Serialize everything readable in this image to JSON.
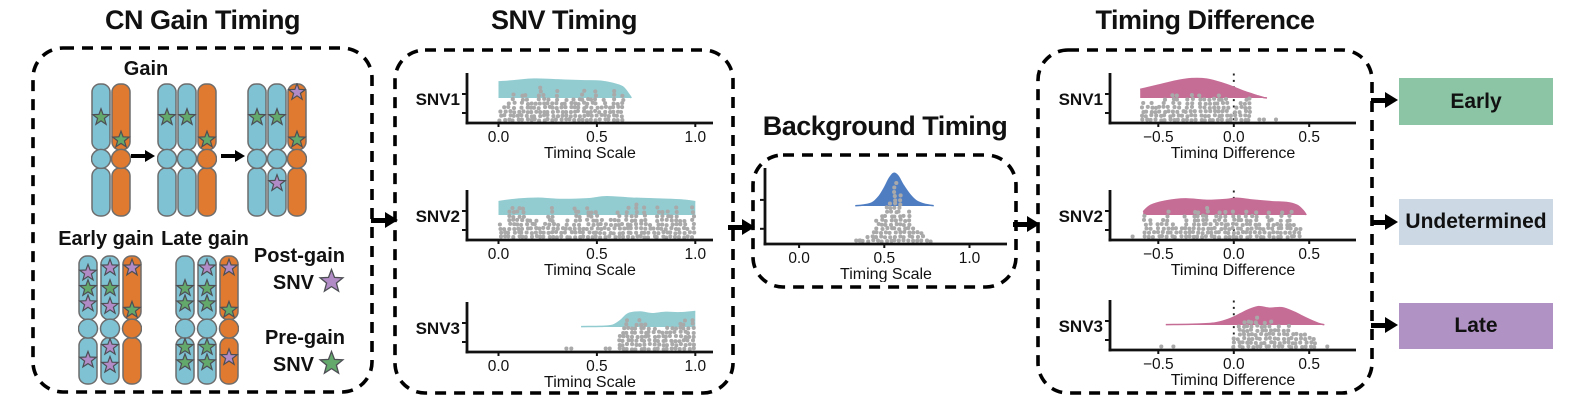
{
  "colors": {
    "chrom_blue": "#7fc2d4",
    "chrom_orange": "#df7a30",
    "chrom_stroke": "#6d6d6d",
    "green": "#64a96c",
    "purple": "#b18bc5",
    "star_stroke": "#4d4f55",
    "teal": "#92ccd1",
    "blue": "#4f7dc2",
    "pink": "#c66d96",
    "dot": "#a9a9a9",
    "axis": "#111111"
  },
  "cn_gain": {
    "title": "CN Gain Timing",
    "gain_label": "Gain",
    "early_label": "Early gain",
    "late_label": "Late gain",
    "gain_stages": [
      {
        "chroms": [
          {
            "color": "chrom_blue",
            "stars": [
              [
                "green",
                0.26
              ]
            ]
          },
          {
            "color": "chrom_orange",
            "stars": [
              [
                "green",
                0.43
              ]
            ]
          }
        ]
      },
      {
        "chroms": [
          {
            "color": "chrom_blue",
            "stars": [
              [
                "green",
                0.26
              ]
            ]
          },
          {
            "color": "chrom_blue",
            "stars": [
              [
                "green",
                0.26
              ]
            ]
          },
          {
            "color": "chrom_orange",
            "stars": [
              [
                "green",
                0.43
              ]
            ]
          }
        ]
      },
      {
        "chroms": [
          {
            "color": "chrom_blue",
            "stars": [
              [
                "green",
                0.26
              ]
            ]
          },
          {
            "color": "chrom_blue",
            "stars": [
              [
                "green",
                0.26
              ],
              [
                "purple",
                0.76
              ]
            ]
          },
          {
            "color": "chrom_orange",
            "stars": [
              [
                "purple",
                0.07
              ],
              [
                "green",
                0.43
              ]
            ]
          }
        ]
      }
    ],
    "early_group": {
      "chroms": [
        {
          "color": "chrom_blue",
          "stars": [
            [
              "purple",
              0.14
            ],
            [
              "green",
              0.26
            ],
            [
              "purple",
              0.38
            ],
            [
              "purple",
              0.82
            ]
          ]
        },
        {
          "color": "chrom_blue",
          "stars": [
            [
              "purple",
              0.1
            ],
            [
              "green",
              0.26
            ],
            [
              "purple",
              0.4
            ],
            [
              "purple",
              0.72
            ],
            [
              "purple",
              0.86
            ]
          ]
        },
        {
          "color": "chrom_orange",
          "stars": [
            [
              "purple",
              0.1
            ],
            [
              "green",
              0.43
            ]
          ]
        }
      ]
    },
    "late_group": {
      "chroms": [
        {
          "color": "chrom_blue",
          "stars": [
            [
              "green",
              0.26
            ],
            [
              "green",
              0.38
            ],
            [
              "green",
              0.72
            ],
            [
              "green",
              0.84
            ]
          ]
        },
        {
          "color": "chrom_blue",
          "stars": [
            [
              "purple",
              0.1
            ],
            [
              "green",
              0.26
            ],
            [
              "green",
              0.38
            ],
            [
              "green",
              0.72
            ],
            [
              "green",
              0.84
            ]
          ]
        },
        {
          "color": "chrom_orange",
          "stars": [
            [
              "purple",
              0.1
            ],
            [
              "green",
              0.43
            ],
            [
              "purple",
              0.8
            ]
          ]
        }
      ]
    },
    "legend": [
      {
        "line1": "Post-gain",
        "line2": "SNV",
        "star": "purple"
      },
      {
        "line1": "Pre-gain",
        "line2": "SNV",
        "star": "green"
      }
    ]
  },
  "snv_timing": {
    "title": "SNV Timing",
    "plots": [
      {
        "label": "SNV1",
        "axis_label": "Timing Scale",
        "domain": [
          -0.16,
          1.09
        ],
        "ticks": [
          {
            "v": 0,
            "label": "0.0"
          },
          {
            "v": 0.5,
            "label": "0.5"
          },
          {
            "v": 1,
            "label": "1.0"
          }
        ],
        "density_color": "teal",
        "zero_line": false,
        "density": [
          [
            0.0,
            0.75
          ],
          [
            0.08,
            0.8
          ],
          [
            0.18,
            0.88
          ],
          [
            0.3,
            0.84
          ],
          [
            0.42,
            0.8
          ],
          [
            0.52,
            0.78
          ],
          [
            0.58,
            0.68
          ],
          [
            0.63,
            0.52
          ],
          [
            0.66,
            0.2
          ],
          [
            0.675,
            0.0
          ]
        ],
        "dots": {
          "min": 0.0,
          "max": 0.64,
          "max_stack": 9,
          "weight": "flat",
          "seed": 7
        },
        "outliers": []
      },
      {
        "label": "SNV2",
        "axis_label": "Timing Scale",
        "domain": [
          -0.16,
          1.09
        ],
        "ticks": [
          {
            "v": 0,
            "label": "0.0"
          },
          {
            "v": 0.5,
            "label": "0.5"
          },
          {
            "v": 1,
            "label": "1.0"
          }
        ],
        "density_color": "teal",
        "zero_line": false,
        "density": [
          [
            0.0,
            0.62
          ],
          [
            0.1,
            0.74
          ],
          [
            0.2,
            0.78
          ],
          [
            0.32,
            0.72
          ],
          [
            0.45,
            0.75
          ],
          [
            0.55,
            0.85
          ],
          [
            0.68,
            0.78
          ],
          [
            0.82,
            0.74
          ],
          [
            0.93,
            0.7
          ],
          [
            1.0,
            0.62
          ]
        ],
        "dots": {
          "min": 0.0,
          "max": 1.0,
          "max_stack": 9,
          "weight": "flat",
          "seed": 8
        },
        "outliers": []
      },
      {
        "label": "SNV3",
        "axis_label": "Timing Scale",
        "domain": [
          -0.16,
          1.09
        ],
        "ticks": [
          {
            "v": 0,
            "label": "0.0"
          },
          {
            "v": 0.5,
            "label": "0.5"
          },
          {
            "v": 1,
            "label": "1.0"
          }
        ],
        "density_color": "teal",
        "zero_line": false,
        "density": [
          [
            0.42,
            0.02
          ],
          [
            0.52,
            0.03
          ],
          [
            0.58,
            0.08
          ],
          [
            0.62,
            0.3
          ],
          [
            0.66,
            0.62
          ],
          [
            0.72,
            0.7
          ],
          [
            0.78,
            0.62
          ],
          [
            0.85,
            0.68
          ],
          [
            0.92,
            0.66
          ],
          [
            1.0,
            0.72
          ]
        ],
        "dots": {
          "min": 0.6,
          "max": 1.0,
          "max_stack": 9,
          "weight": "density",
          "pow": 0.4,
          "seed": 9
        },
        "outliers": [
          0.345,
          0.37,
          0.545,
          0.565
        ]
      }
    ]
  },
  "background_timing": {
    "title": "Background Timing",
    "plot": {
      "label": "",
      "axis_label": "Timing Scale",
      "domain": [
        -0.2,
        1.22
      ],
      "ticks": [
        {
          "v": 0,
          "label": "0.0"
        },
        {
          "v": 0.5,
          "label": "0.5"
        },
        {
          "v": 1,
          "label": "1.0"
        }
      ],
      "density_color": "blue",
      "zero_line": false,
      "density": [
        [
          0.33,
          0.01
        ],
        [
          0.38,
          0.03
        ],
        [
          0.43,
          0.1
        ],
        [
          0.47,
          0.3
        ],
        [
          0.5,
          0.55
        ],
        [
          0.53,
          0.85
        ],
        [
          0.555,
          1.0
        ],
        [
          0.58,
          0.92
        ],
        [
          0.61,
          0.65
        ],
        [
          0.65,
          0.35
        ],
        [
          0.69,
          0.15
        ],
        [
          0.74,
          0.05
        ],
        [
          0.79,
          0.01
        ]
      ],
      "dots": {
        "min": 0.34,
        "max": 0.79,
        "max_stack": 17,
        "weight": "density",
        "pow": 0.7,
        "seed": 5
      },
      "outliers": [
        0.335,
        0.355
      ]
    }
  },
  "timing_difference": {
    "title": "Timing Difference",
    "plots": [
      {
        "label": "SNV1",
        "axis_label": "Timing Difference",
        "domain": [
          -0.82,
          0.81
        ],
        "ticks": [
          {
            "v": -0.5,
            "label": "−0.5"
          },
          {
            "v": 0,
            "label": "0.0"
          },
          {
            "v": 0.5,
            "label": "0.5"
          }
        ],
        "density_color": "pink",
        "zero_line": true,
        "density": [
          [
            -0.62,
            0.4
          ],
          [
            -0.5,
            0.6
          ],
          [
            -0.38,
            0.8
          ],
          [
            -0.28,
            0.9
          ],
          [
            -0.18,
            0.88
          ],
          [
            -0.08,
            0.7
          ],
          [
            0.0,
            0.5
          ],
          [
            0.08,
            0.28
          ],
          [
            0.16,
            0.1
          ],
          [
            0.2,
            0.02
          ],
          [
            0.22,
            0.0
          ]
        ],
        "dots": {
          "min": -0.62,
          "max": 0.12,
          "max_stack": 8,
          "weight": "flat",
          "seed": 21
        },
        "outliers": [
          0.17,
          0.2,
          0.28
        ]
      },
      {
        "label": "SNV2",
        "axis_label": "Timing Difference",
        "domain": [
          -0.82,
          0.81
        ],
        "ticks": [
          {
            "v": -0.5,
            "label": "−0.5"
          },
          {
            "v": 0,
            "label": "0.0"
          },
          {
            "v": 0.5,
            "label": "0.5"
          }
        ],
        "density_color": "pink",
        "zero_line": true,
        "density": [
          [
            -0.6,
            0.15
          ],
          [
            -0.55,
            0.45
          ],
          [
            -0.45,
            0.65
          ],
          [
            -0.32,
            0.75
          ],
          [
            -0.18,
            0.68
          ],
          [
            -0.05,
            0.72
          ],
          [
            0.02,
            0.78
          ],
          [
            0.12,
            0.7
          ],
          [
            0.25,
            0.62
          ],
          [
            0.35,
            0.58
          ],
          [
            0.42,
            0.45
          ],
          [
            0.46,
            0.2
          ],
          [
            0.48,
            0.0
          ]
        ],
        "dots": {
          "min": -0.6,
          "max": 0.45,
          "max_stack": 8,
          "weight": "flat",
          "seed": 22
        },
        "outliers": [
          -0.67
        ]
      },
      {
        "label": "SNV3",
        "axis_label": "Timing Difference",
        "domain": [
          -0.82,
          0.81
        ],
        "ticks": [
          {
            "v": -0.5,
            "label": "−0.5"
          },
          {
            "v": 0,
            "label": "0.0"
          },
          {
            "v": 0.5,
            "label": "0.5"
          }
        ],
        "density_color": "pink",
        "zero_line": true,
        "density": [
          [
            -0.45,
            0.02
          ],
          [
            -0.25,
            0.04
          ],
          [
            -0.12,
            0.1
          ],
          [
            -0.02,
            0.3
          ],
          [
            0.08,
            0.65
          ],
          [
            0.16,
            0.85
          ],
          [
            0.24,
            0.78
          ],
          [
            0.32,
            0.8
          ],
          [
            0.4,
            0.6
          ],
          [
            0.48,
            0.32
          ],
          [
            0.56,
            0.08
          ],
          [
            0.6,
            0.01
          ]
        ],
        "dots": {
          "min": -0.01,
          "max": 0.55,
          "max_stack": 8,
          "weight": "density",
          "pow": 0.5,
          "seed": 23
        },
        "outliers": [
          -0.48,
          -0.4,
          0.62
        ]
      }
    ]
  },
  "outcomes": [
    {
      "label": "Early",
      "bg": "#8bc5a5"
    },
    {
      "label": "Undetermined",
      "bg": "#ccd8e4"
    },
    {
      "label": "Late",
      "bg": "#b092c4"
    }
  ]
}
